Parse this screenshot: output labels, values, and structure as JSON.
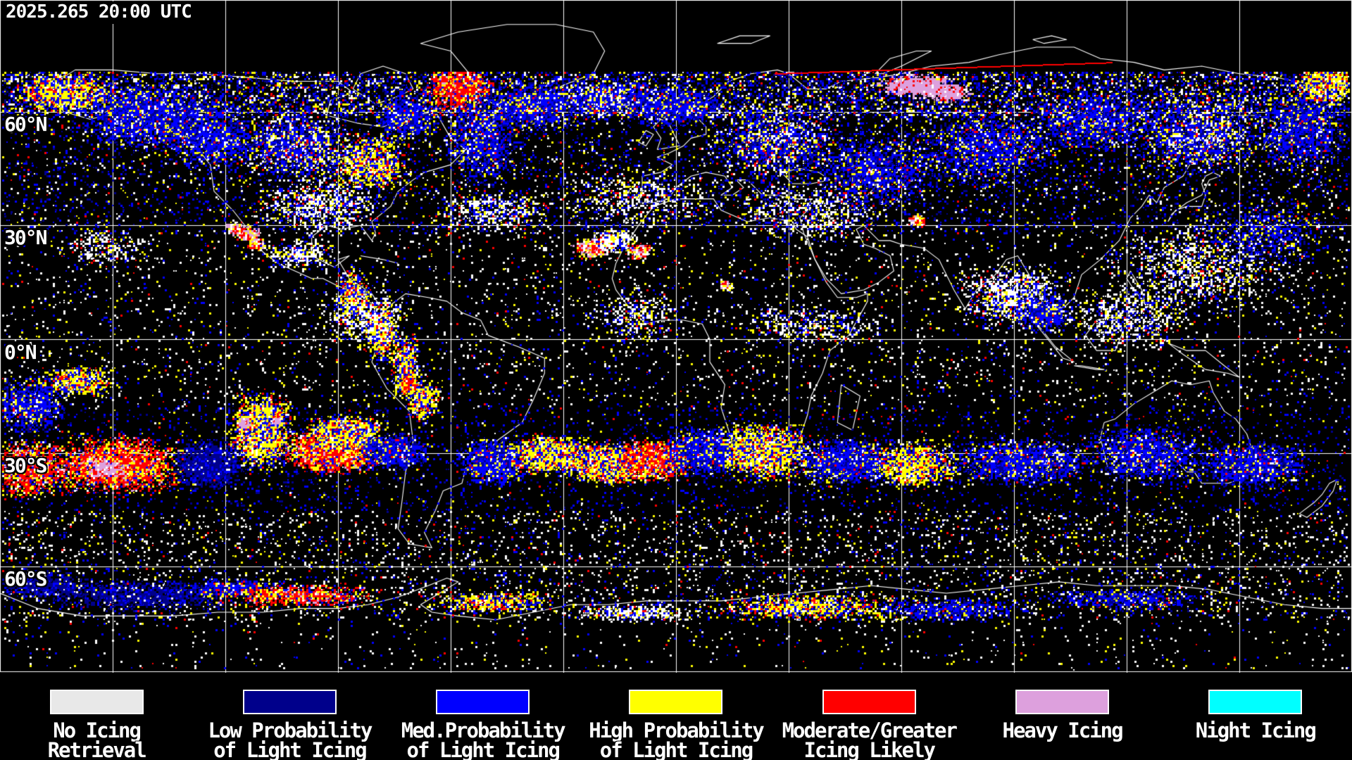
{
  "header": {
    "timestamp": "2025.265 20:00 UTC"
  },
  "map": {
    "background_color": "#000000",
    "gridline_color": "#ffffff",
    "coastline_color": "#ffffff",
    "latitude_labels": [
      {
        "text": "60°N"
      },
      {
        "text": "30°N"
      },
      {
        "text": "0°N"
      },
      {
        "text": "30°S"
      },
      {
        "text": "60°S"
      }
    ]
  },
  "legend": {
    "items": [
      {
        "line1": "No Icing",
        "line2": "Retrieval",
        "color": "#e8e8e8"
      },
      {
        "line1": "Low Probability",
        "line2": "of Light Icing",
        "color": "#00008b"
      },
      {
        "line1": "Med.Probability",
        "line2": "of Light Icing",
        "color": "#0000ff"
      },
      {
        "line1": "High Probability",
        "line2": "of Light Icing",
        "color": "#ffff00"
      },
      {
        "line1": "Moderate/Greater",
        "line2": "Icing Likely",
        "color": "#ff0000"
      },
      {
        "line1": "Heavy Icing",
        "line2": "",
        "color": "#dda0dd"
      },
      {
        "line1": "Night Icing",
        "line2": "",
        "color": "#00ffff"
      }
    ]
  }
}
